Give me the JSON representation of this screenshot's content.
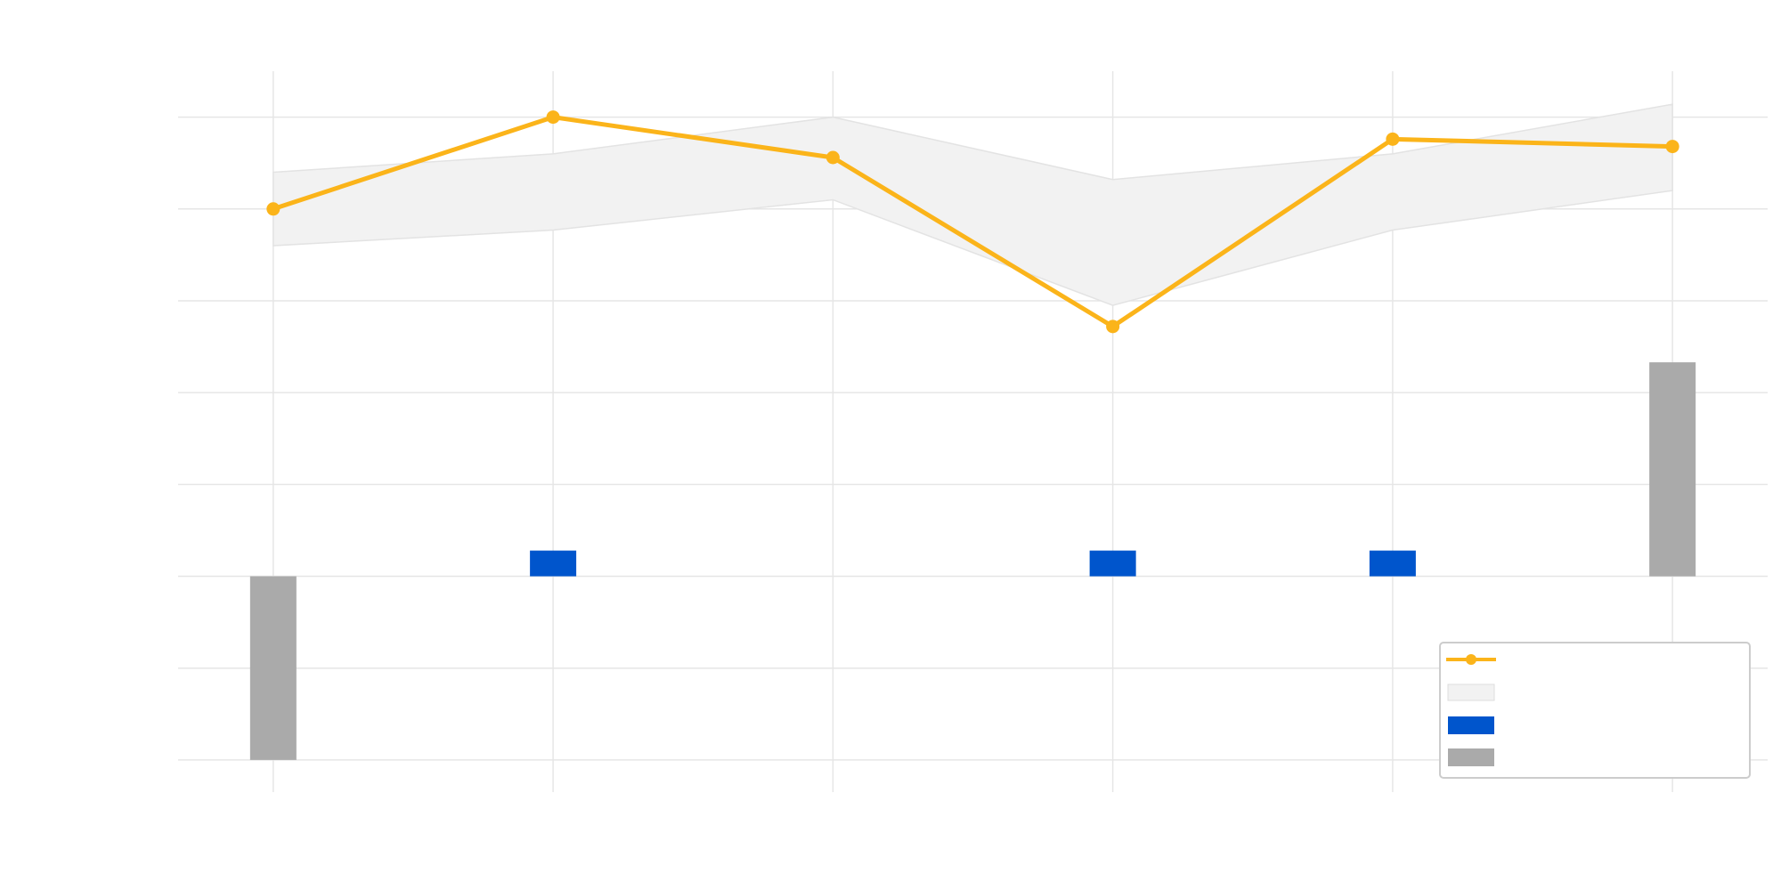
{
  "chart_data": {
    "type": "line",
    "title": "",
    "xlabel": "",
    "ylabel": "",
    "x": [
      1,
      2,
      3,
      4,
      5,
      6
    ],
    "xlim": [
      0.66,
      6.34
    ],
    "ylim": [
      -2.35,
      5.5
    ],
    "yticks": [
      -2,
      -1,
      0,
      1,
      2,
      3,
      4,
      5
    ],
    "grid": true,
    "legend_position": "bottom-right",
    "series": [
      {
        "name": "",
        "kind": "line",
        "color": "#FBB41A",
        "values": [
          4.0,
          5.0,
          4.56,
          2.72,
          4.76,
          4.68
        ]
      },
      {
        "name": "",
        "kind": "band",
        "color": "#F2F2F2",
        "upper": [
          4.4,
          4.6,
          5.0,
          4.32,
          4.6,
          5.14
        ],
        "lower": [
          3.6,
          3.77,
          4.1,
          2.95,
          3.77,
          4.2
        ]
      },
      {
        "name": "",
        "kind": "bar",
        "color": "#0055CC",
        "values": [
          0,
          0.28,
          0,
          0.28,
          0.28,
          0
        ]
      },
      {
        "name": "",
        "kind": "bar",
        "color": "#AAAAAA",
        "values": [
          -2.0,
          0,
          0,
          0,
          0,
          2.33
        ]
      }
    ]
  }
}
